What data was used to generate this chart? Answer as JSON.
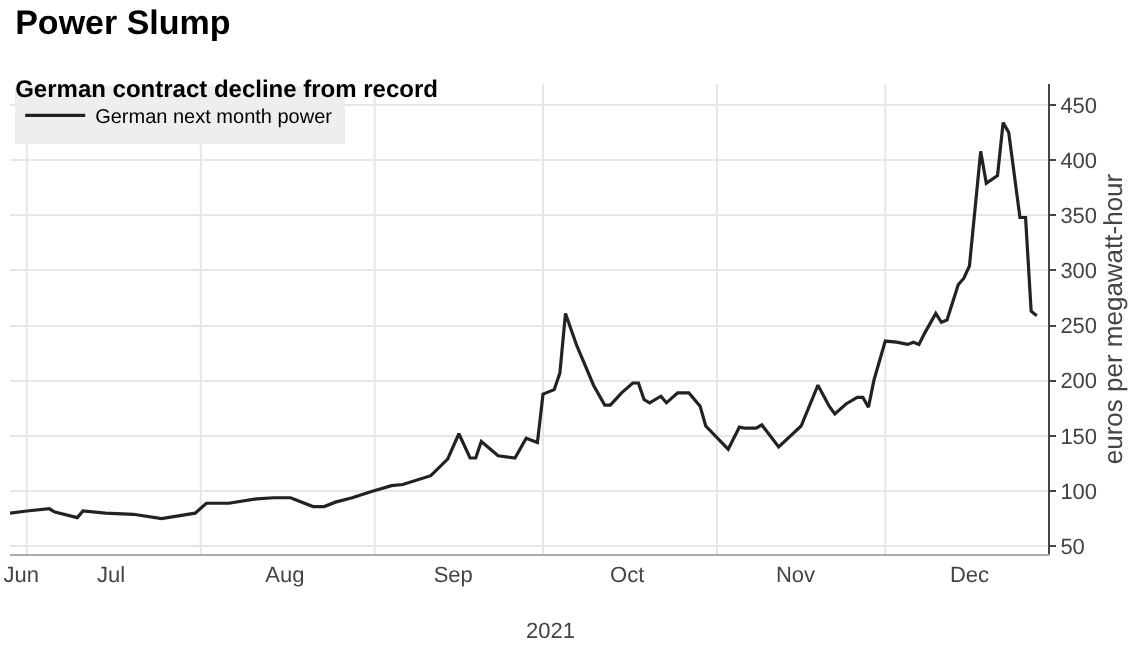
{
  "chart_data": {
    "type": "line",
    "title": "Power Slump",
    "subtitle": "German contract decline from record",
    "ylabel": "euros per megawatt-hour",
    "x": [
      "2021-06-28",
      "2021-07-01",
      "2021-07-05",
      "2021-07-06",
      "2021-07-10",
      "2021-07-11",
      "2021-07-15",
      "2021-07-20",
      "2021-07-25",
      "2021-07-31",
      "2021-08-02",
      "2021-08-06",
      "2021-08-11",
      "2021-08-14",
      "2021-08-17",
      "2021-08-18",
      "2021-08-21",
      "2021-08-23",
      "2021-08-25",
      "2021-08-28",
      "2021-08-31",
      "2021-09-04",
      "2021-09-06",
      "2021-09-11",
      "2021-09-14",
      "2021-09-16",
      "2021-09-18",
      "2021-09-19",
      "2021-09-20",
      "2021-09-23",
      "2021-09-26",
      "2021-09-28",
      "2021-09-30",
      "2021-10-01",
      "2021-10-03",
      "2021-10-04",
      "2021-10-05",
      "2021-10-07",
      "2021-10-10",
      "2021-10-12",
      "2021-10-13",
      "2021-10-15",
      "2021-10-17",
      "2021-10-18",
      "2021-10-19",
      "2021-10-20",
      "2021-10-22",
      "2021-10-23",
      "2021-10-25",
      "2021-10-27",
      "2021-10-29",
      "2021-10-30",
      "2021-11-03",
      "2021-11-05",
      "2021-11-06",
      "2021-11-08",
      "2021-11-09",
      "2021-11-12",
      "2021-11-16",
      "2021-11-19",
      "2021-11-21",
      "2021-11-22",
      "2021-11-24",
      "2021-11-26",
      "2021-11-27",
      "2021-11-28",
      "2021-11-29",
      "2021-12-01",
      "2021-12-03",
      "2021-12-05",
      "2021-12-06",
      "2021-12-07",
      "2021-12-08",
      "2021-12-10",
      "2021-12-11",
      "2021-12-12",
      "2021-12-14",
      "2021-12-15",
      "2021-12-16",
      "2021-12-18",
      "2021-12-19",
      "2021-12-21",
      "2021-12-22",
      "2021-12-23",
      "2021-12-25",
      "2021-12-26",
      "2021-12-27",
      "2021-12-28"
    ],
    "series": [
      {
        "name": "German next month power",
        "color": "#222222",
        "values": [
          80,
          82,
          84,
          81,
          76,
          82,
          80,
          79,
          75,
          80,
          89,
          89,
          93,
          94,
          94,
          92,
          86,
          86,
          90,
          94,
          99,
          105,
          106,
          114,
          129,
          152,
          130,
          130,
          145,
          132,
          130,
          148,
          144,
          188,
          192,
          207,
          261,
          232,
          196,
          178,
          178,
          189,
          198,
          198,
          183,
          180,
          186,
          180,
          189,
          189,
          177,
          159,
          138,
          158,
          157,
          157,
          160,
          140,
          159,
          196,
          177,
          170,
          179,
          185,
          185,
          176,
          201,
          236,
          235,
          233,
          235,
          233,
          243,
          261,
          253,
          255,
          287,
          293,
          304,
          408,
          379,
          386,
          434,
          425,
          348,
          348,
          263,
          259
        ]
      }
    ],
    "xlim": [
      "2021-06-28",
      "2021-12-30"
    ],
    "xticks": [
      {
        "value": "2021-06-30",
        "label": "Jun"
      },
      {
        "value": "2021-07-16",
        "label": "Jul"
      },
      {
        "value": "2021-08-16",
        "label": "Aug"
      },
      {
        "value": "2021-09-15",
        "label": "Sep"
      },
      {
        "value": "2021-10-16",
        "label": "Oct"
      },
      {
        "value": "2021-11-15",
        "label": "Nov"
      },
      {
        "value": "2021-12-16",
        "label": "Dec"
      },
      {
        "value": "2021-07-01",
        "label": null
      },
      {
        "value": "2021-08-01",
        "label": null
      },
      {
        "value": "2021-09-01",
        "label": null
      },
      {
        "value": "2021-10-01",
        "label": null
      },
      {
        "value": "2021-11-01",
        "label": null
      },
      {
        "value": "2021-12-01",
        "label": null
      }
    ],
    "ylim": [
      43,
      469
    ],
    "yticks": [
      50,
      100,
      150,
      200,
      250,
      300,
      350,
      400,
      450
    ],
    "annotations": [
      "2021"
    ],
    "grid": true,
    "legend": "top left",
    "marker": "none",
    "line_style": "solid"
  }
}
